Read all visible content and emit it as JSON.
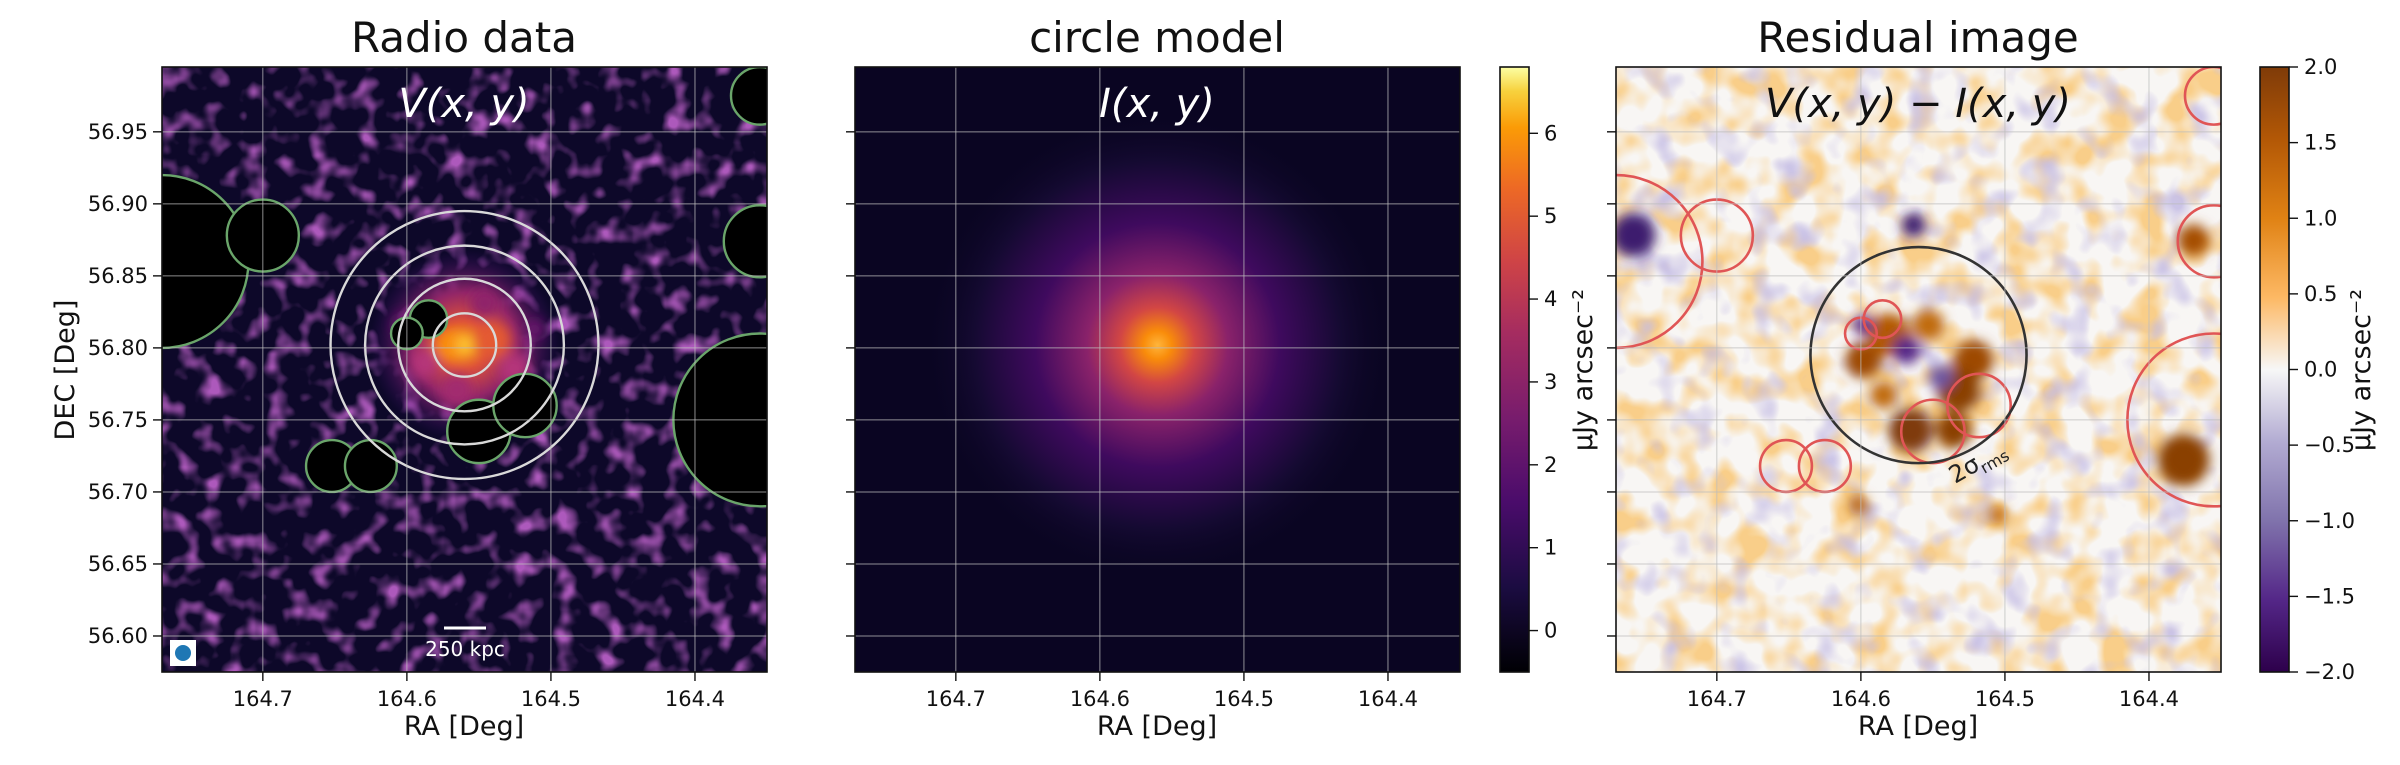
{
  "chart_data": [
    {
      "type": "heatmap",
      "title": "Radio data",
      "inset_label": "V(x, y)",
      "xlabel": "RA [Deg]",
      "ylabel": "DEC [Deg]",
      "xlim": [
        164.77,
        164.35
      ],
      "ylim": [
        56.575,
        56.995
      ],
      "xticks": [
        164.7,
        164.6,
        164.5,
        164.4
      ],
      "xtick_labels": [
        "164.7",
        "164.6",
        "164.5",
        "164.4"
      ],
      "yticks": [
        56.6,
        56.65,
        56.7,
        56.75,
        56.8,
        56.85,
        56.9,
        56.95
      ],
      "ytick_labels": [
        "56.60",
        "56.65",
        "56.70",
        "56.75",
        "56.80",
        "56.85",
        "56.90",
        "56.95"
      ],
      "grid": true,
      "colormap": "inferno",
      "center": {
        "ra": 164.56,
        "dec": 56.802
      },
      "scalebar_label": "250 kpc",
      "annulus_radii_deg": [
        0.022,
        0.046,
        0.069,
        0.093
      ],
      "masks_color": "#6aa56a",
      "masks": [
        {
          "ra": 164.77,
          "dec": 56.86,
          "r": 0.06
        },
        {
          "ra": 164.7,
          "dec": 56.878,
          "r": 0.025
        },
        {
          "ra": 164.355,
          "dec": 56.975,
          "r": 0.02
        },
        {
          "ra": 164.355,
          "dec": 56.874,
          "r": 0.025
        },
        {
          "ra": 164.355,
          "dec": 56.75,
          "r": 0.06
        },
        {
          "ra": 164.652,
          "dec": 56.718,
          "r": 0.018
        },
        {
          "ra": 164.625,
          "dec": 56.718,
          "r": 0.018
        },
        {
          "ra": 164.585,
          "dec": 56.82,
          "r": 0.013
        },
        {
          "ra": 164.6,
          "dec": 56.81,
          "r": 0.011
        },
        {
          "ra": 164.55,
          "dec": 56.742,
          "r": 0.022
        },
        {
          "ra": 164.518,
          "dec": 56.76,
          "r": 0.022
        }
      ]
    },
    {
      "type": "heatmap",
      "title": "circle model",
      "inset_label": "I(x, y)",
      "xlabel": "RA [Deg]",
      "ylabel": "",
      "xlim": [
        164.77,
        164.35
      ],
      "ylim": [
        56.575,
        56.995
      ],
      "xticks": [
        164.7,
        164.6,
        164.5,
        164.4
      ],
      "xtick_labels": [
        "164.7",
        "164.6",
        "164.5",
        "164.4"
      ],
      "grid": true,
      "colormap": "inferno",
      "model_center": {
        "ra": 164.56,
        "dec": 56.802
      },
      "colorbar": {
        "label": "μJy arcsec⁻²",
        "range": [
          -0.5,
          6.8
        ],
        "ticks": [
          0,
          1,
          2,
          3,
          4,
          5,
          6
        ],
        "tick_labels": [
          "0",
          "1",
          "2",
          "3",
          "4",
          "5",
          "6"
        ]
      }
    },
    {
      "type": "heatmap",
      "title": "Residual image",
      "inset_label": "V(x, y) − I(x, y)",
      "xlabel": "RA [Deg]",
      "ylabel": "",
      "xlim": [
        164.77,
        164.35
      ],
      "ylim": [
        56.575,
        56.995
      ],
      "xticks": [
        164.7,
        164.6,
        164.5,
        164.4
      ],
      "xtick_labels": [
        "164.7",
        "164.6",
        "164.5",
        "164.4"
      ],
      "grid": true,
      "colormap": "PuOr_r",
      "contour_label": "2σ",
      "contour_label_sub": "rms",
      "circle": {
        "ra": 164.56,
        "dec": 56.795,
        "r": 0.075
      },
      "masks_color": "#e05555",
      "masks": [
        {
          "ra": 164.77,
          "dec": 56.86,
          "r": 0.06
        },
        {
          "ra": 164.7,
          "dec": 56.878,
          "r": 0.025
        },
        {
          "ra": 164.355,
          "dec": 56.975,
          "r": 0.02
        },
        {
          "ra": 164.355,
          "dec": 56.874,
          "r": 0.025
        },
        {
          "ra": 164.355,
          "dec": 56.75,
          "r": 0.06
        },
        {
          "ra": 164.652,
          "dec": 56.718,
          "r": 0.018
        },
        {
          "ra": 164.625,
          "dec": 56.718,
          "r": 0.018
        },
        {
          "ra": 164.585,
          "dec": 56.82,
          "r": 0.013
        },
        {
          "ra": 164.6,
          "dec": 56.81,
          "r": 0.011
        },
        {
          "ra": 164.55,
          "dec": 56.742,
          "r": 0.022
        },
        {
          "ra": 164.518,
          "dec": 56.76,
          "r": 0.022
        }
      ],
      "colorbar": {
        "label": "μJy arcsec⁻²",
        "range": [
          -2.0,
          2.0
        ],
        "ticks": [
          -2.0,
          -1.5,
          -1.0,
          -0.5,
          0.0,
          0.5,
          1.0,
          1.5,
          2.0
        ],
        "tick_labels": [
          "−2.0",
          "−1.5",
          "−1.0",
          "−0.5",
          "0.0",
          "0.5",
          "1.0",
          "1.5",
          "2.0"
        ]
      }
    }
  ]
}
